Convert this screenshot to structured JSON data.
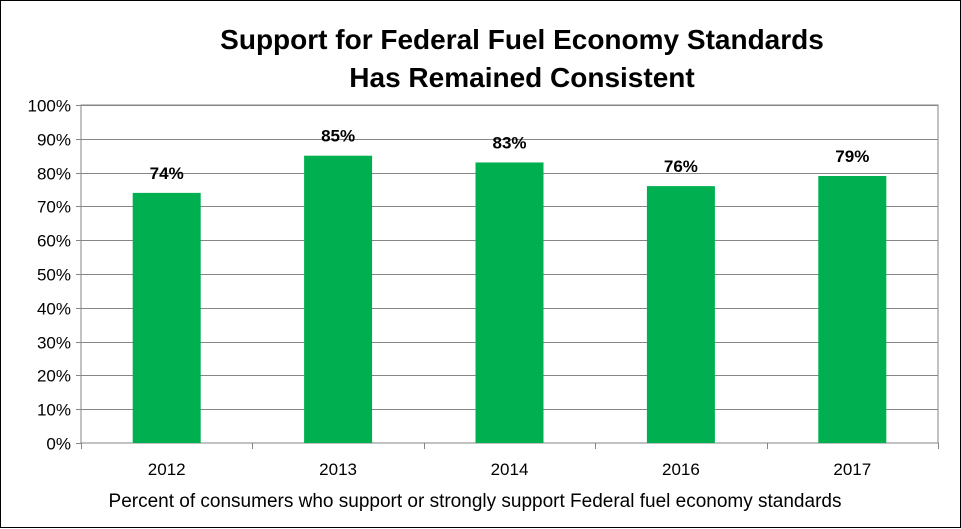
{
  "chart_data": {
    "type": "bar",
    "title": [
      "Support for Federal Fuel Economy Standards",
      "Has Remained Consistent"
    ],
    "caption": "Percent of consumers who support or strongly support Federal fuel economy standards",
    "categories": [
      "2012",
      "2013",
      "2014",
      "2016",
      "2017"
    ],
    "values": [
      74,
      85,
      83,
      76,
      79
    ],
    "data_labels": [
      "74%",
      "85%",
      "83%",
      "76%",
      "79%"
    ],
    "y_ticks": [
      "0%",
      "10%",
      "20%",
      "30%",
      "40%",
      "50%",
      "60%",
      "70%",
      "80%",
      "90%",
      "100%"
    ],
    "ylim": [
      0,
      100
    ],
    "grid": true,
    "bar_color": "#00b050",
    "legend": "none"
  }
}
